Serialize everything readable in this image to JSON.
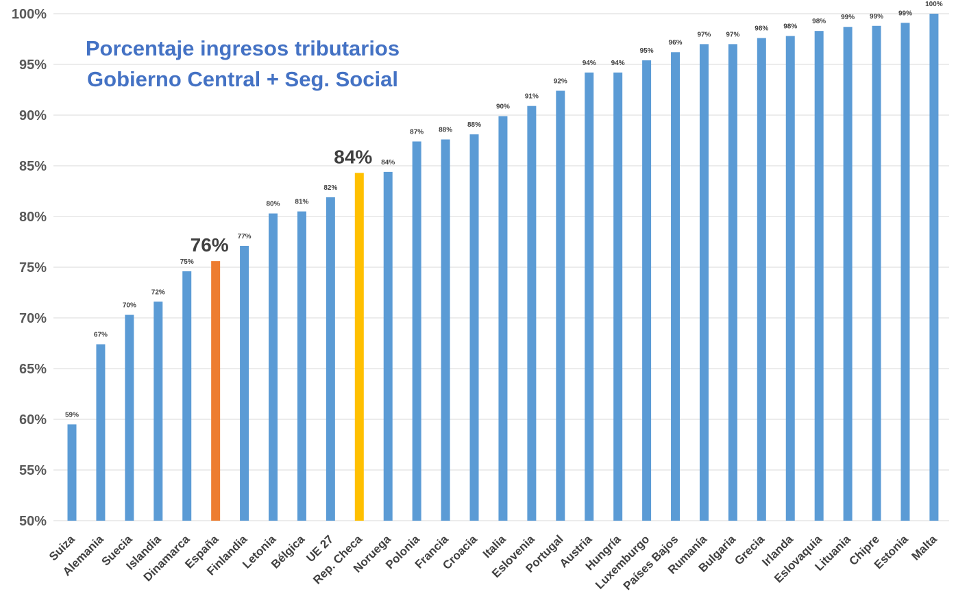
{
  "chart_data": {
    "type": "bar",
    "title_lines": [
      "Porcentaje ingresos tributarios",
      "Gobierno Central + Seg. Social"
    ],
    "xlabel": "",
    "ylabel": "",
    "ylim": [
      50,
      100
    ],
    "yticks": [
      50,
      55,
      60,
      65,
      70,
      75,
      80,
      85,
      90,
      95,
      100
    ],
    "grid": true,
    "legend": "none",
    "colors": {
      "default": "#5B9BD5",
      "highlight_spain": "#ED7D31",
      "highlight_czech": "#FFC000",
      "grid": "#D9D9D9",
      "title": "#4472C4",
      "text": "#404040"
    },
    "categories": [
      "Suiza",
      "Alemania",
      "Suecia",
      "Islandia",
      "Dinamarca",
      "España",
      "Finlandia",
      "Letonia",
      "Bélgica",
      "UE 27",
      "Rep. Checa",
      "Noruega",
      "Polonia",
      "Francia",
      "Croacia",
      "Italia",
      "Eslovenia",
      "Portugal",
      "Austria",
      "Hungría",
      "Luxemburgo",
      "Países Bajos",
      "Rumanía",
      "Bulgaria",
      "Grecia",
      "Irlanda",
      "Eslovaquia",
      "Lituania",
      "Chipre",
      "Estonia",
      "Malta"
    ],
    "values": [
      59.5,
      67.4,
      70.3,
      71.6,
      74.6,
      75.6,
      77.1,
      80.3,
      80.5,
      81.9,
      84.3,
      84.4,
      87.4,
      87.6,
      88.1,
      89.9,
      90.9,
      92.4,
      94.2,
      94.2,
      95.4,
      96.2,
      97.0,
      97.0,
      97.6,
      97.8,
      98.3,
      98.7,
      98.8,
      99.1,
      100.0
    ],
    "data_labels": [
      "59%",
      "67%",
      "70%",
      "72%",
      "75%",
      "76%",
      "77%",
      "80%",
      "81%",
      "82%",
      "84%",
      "84%",
      "87%",
      "88%",
      "88%",
      "90%",
      "91%",
      "92%",
      "94%",
      "94%",
      "95%",
      "96%",
      "97%",
      "97%",
      "98%",
      "98%",
      "98%",
      "99%",
      "99%",
      "99%",
      "100%"
    ],
    "highlighted": {
      "España": "highlight_spain",
      "Rep. Checa": "highlight_czech"
    }
  }
}
